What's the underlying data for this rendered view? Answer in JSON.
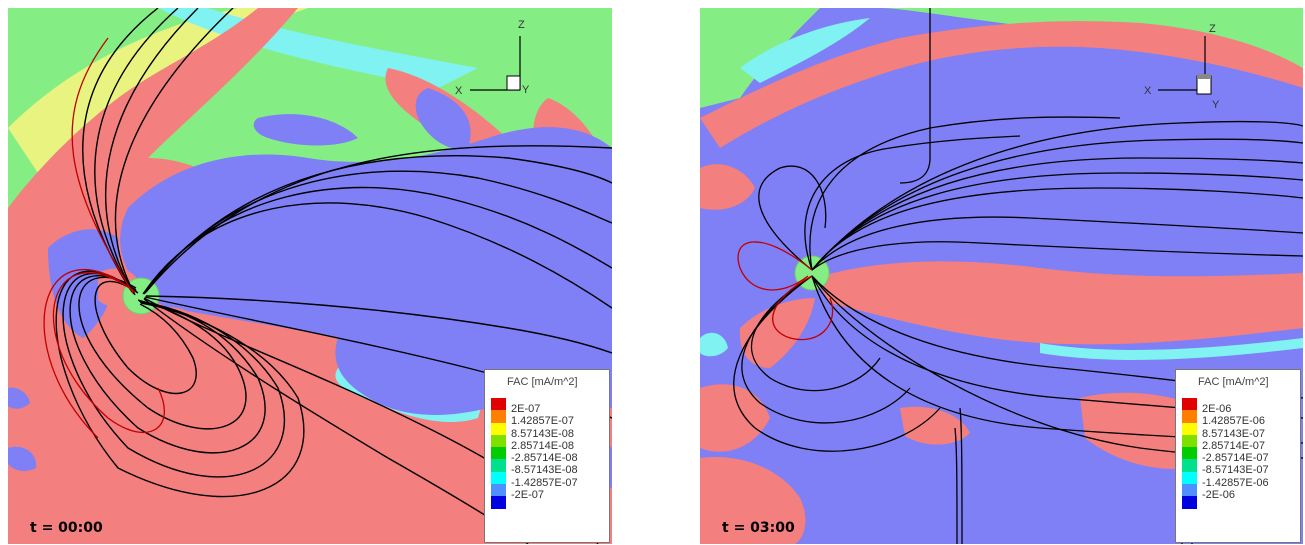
{
  "legend": {
    "title": "FAC [mA/m^2]",
    "colors": [
      "#e00000",
      "#ff7f00",
      "#ffff00",
      "#7fe000",
      "#00cc00",
      "#00e08f",
      "#00ffff",
      "#4f8fff",
      "#0000e0"
    ]
  },
  "panels": [
    {
      "time_label": "t = 00:00",
      "legend_values": [
        "2E-07",
        "1.42857E-07",
        "8.57143E-08",
        "2.85714E-08",
        "-2.85714E-08",
        "-8.57143E-08",
        "-1.42857E-07",
        "-2E-07"
      ]
    },
    {
      "time_label": "t = 03:00",
      "legend_values": [
        "2E-06",
        "1.42857E-06",
        "8.57143E-07",
        "2.85714E-07",
        "-2.85714E-07",
        "-8.57143E-07",
        "-1.42857E-06",
        "-2E-06"
      ]
    }
  ],
  "axes": {
    "x": "X",
    "y": "Y",
    "z": "Z"
  },
  "colors": {
    "positive_region": "#f47f7f",
    "negative_region": "#7f7ff6",
    "background": "#84ee84",
    "field_line": "#000000"
  }
}
